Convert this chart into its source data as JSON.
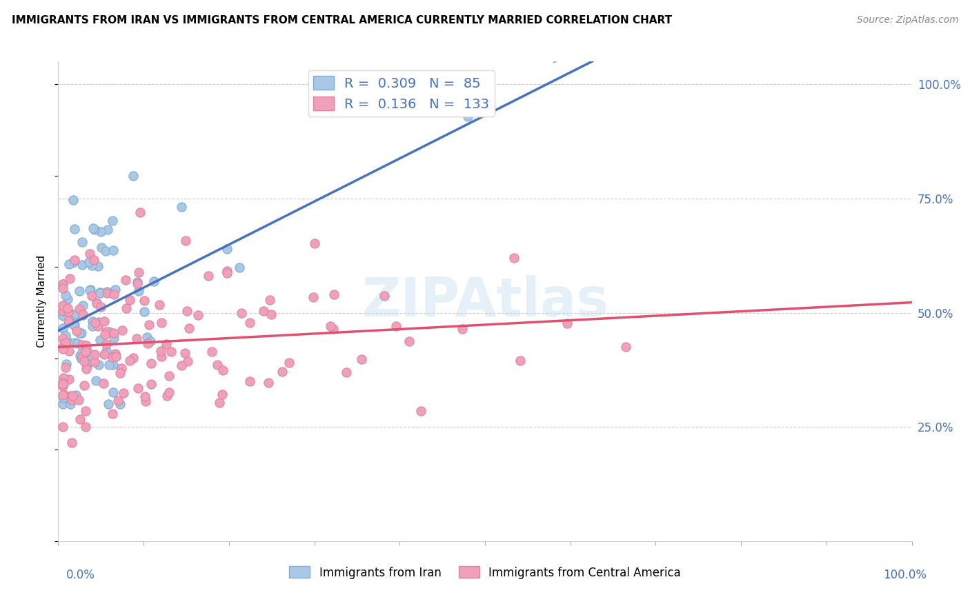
{
  "title": "IMMIGRANTS FROM IRAN VS IMMIGRANTS FROM CENTRAL AMERICA CURRENTLY MARRIED CORRELATION CHART",
  "source": "Source: ZipAtlas.com",
  "ylabel": "Currently Married",
  "color_iran": "#a8c8e8",
  "color_ca": "#f0a0b8",
  "trendline_iran_color": "#4472c4",
  "trendline_ca_color": "#e05070",
  "dashed_color": "#aaaaaa",
  "legend_r1": "0.309",
  "legend_n1": "85",
  "legend_r2": "0.136",
  "legend_n2": "133",
  "watermark": "ZIPAtlas",
  "axis_label_color": "#4472c4",
  "grid_color": "#cccccc",
  "title_fontsize": 11,
  "source_fontsize": 10,
  "ylabel_right_ticks": [
    0.25,
    0.5,
    0.75,
    1.0
  ],
  "ylabel_right_labels": [
    "25.0%",
    "50.0%",
    "75.0%",
    "100.0%"
  ]
}
